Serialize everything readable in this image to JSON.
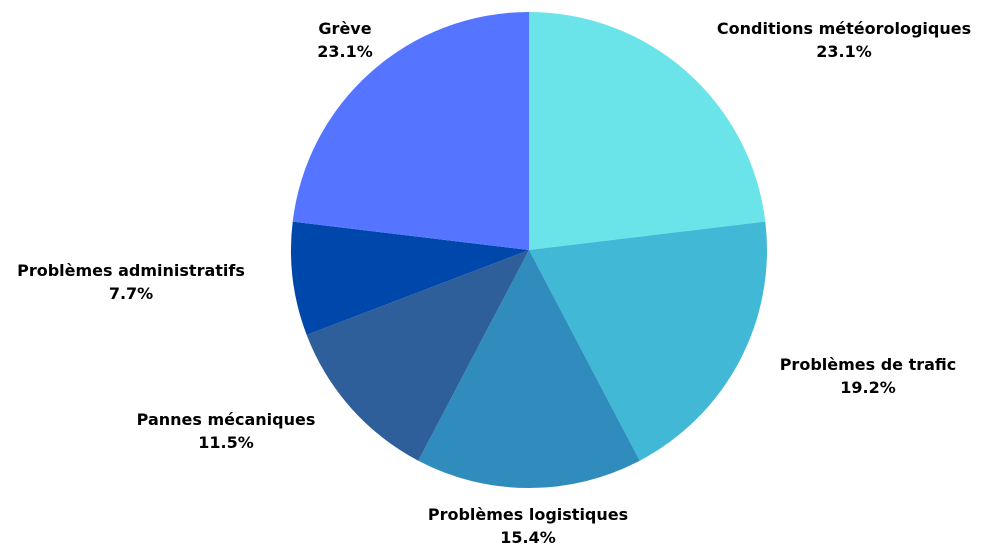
{
  "chart_data": {
    "type": "pie",
    "start": "top",
    "direction": "clockwise",
    "slices": [
      {
        "label": "Conditions météorologiques",
        "value": 23.1,
        "value_label": "23.1%",
        "color": "#6BE4E9"
      },
      {
        "label": "Problèmes de trafic",
        "value": 19.2,
        "value_label": "19.2%",
        "color": "#42B8D7"
      },
      {
        "label": "Problèmes logistiques",
        "value": 15.4,
        "value_label": "15.4%",
        "color": "#2F8CBD"
      },
      {
        "label": "Pannes mécaniques",
        "value": 11.5,
        "value_label": "11.5%",
        "color": "#2F5F9A"
      },
      {
        "label": "Problèmes administratifs",
        "value": 7.7,
        "value_label": "7.7%",
        "color": "#0047AB"
      },
      {
        "label": "Grève",
        "value": 23.1,
        "value_label": "23.1%",
        "color": "#5574FF"
      }
    ]
  }
}
